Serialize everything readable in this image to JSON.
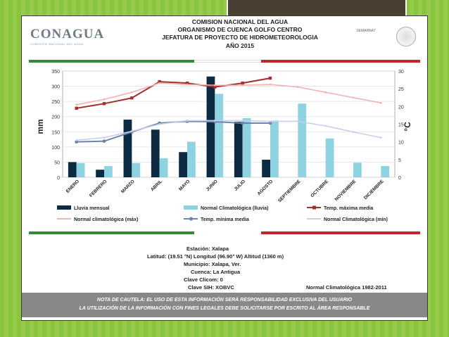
{
  "header": {
    "logo": "CONAGUA",
    "logo_sub": "COMISIÓN NACIONAL DEL AGUA",
    "line1": "COMISION NACIONAL DEL AGUA",
    "line2": "ORGANISMO DE CUENCA GOLFO CENTRO",
    "line3": "JEFATURA DE PROYECTO DE HIDROMETEOROLOGIA",
    "year": "AÑO 2015",
    "seal_text": "SEMARNAT"
  },
  "colors": {
    "lluvia": "#0d2a43",
    "normal_lluvia": "#8fd3e3",
    "tmax": "#a0312b",
    "normal_max": "#f2b3b3",
    "tmin": "#6b86a8",
    "normal_min": "#c8cfee",
    "green": "#2e8b3a",
    "red": "#c0272d"
  },
  "chart_data": {
    "type": "bar",
    "categories": [
      "ENERO",
      "FEBRERO",
      "MARZO",
      "ABRIL",
      "MAYO",
      "JUNIO",
      "JULIO",
      "AGOSTO",
      "SEPTIEMBRE",
      "OCTUBRE",
      "NOVIEMBRE",
      "DICIEMBRE"
    ],
    "ylabel": "mm",
    "y2label": "°C",
    "ylim": [
      0,
      350
    ],
    "y2lim": [
      0,
      30
    ],
    "yticks": [
      "0",
      "50",
      "100",
      "150",
      "200",
      "250",
      "300",
      "350"
    ],
    "y2ticks": [
      "0",
      "5",
      "10",
      "15",
      "20",
      "25",
      "30"
    ],
    "legend_position": "bottom",
    "series": [
      {
        "name": "Lluvia mensual",
        "kind": "bar",
        "axis": "left",
        "values": [
          50,
          25,
          190,
          157,
          83,
          332,
          183,
          58,
          null,
          null,
          null,
          null
        ]
      },
      {
        "name": "Normal Climatológica (lluvia)",
        "kind": "bar",
        "axis": "left",
        "values": [
          47,
          37,
          47,
          63,
          117,
          275,
          195,
          187,
          243,
          128,
          48,
          37
        ]
      },
      {
        "name": "Temp. máxima media",
        "kind": "line",
        "axis": "right",
        "values": [
          19.5,
          20.8,
          22.4,
          27.0,
          26.6,
          25.5,
          26.6,
          28.0,
          null,
          null,
          null,
          null
        ]
      },
      {
        "name": "Normal climatológica (máx)",
        "kind": "line",
        "axis": "right",
        "values": [
          20.5,
          22.0,
          24.0,
          26.6,
          26.2,
          26.0,
          26.0,
          26.2,
          25.5,
          24.0,
          22.5,
          21.0
        ]
      },
      {
        "name": "Temp. mínima media",
        "kind": "line",
        "axis": "right",
        "values": [
          10.0,
          10.2,
          12.8,
          15.3,
          15.8,
          15.7,
          15.3,
          15.3,
          null,
          null,
          null,
          null
        ]
      },
      {
        "name": "Normal Climatológica (mín)",
        "kind": "line",
        "axis": "right",
        "values": [
          10.5,
          11.2,
          13.0,
          15.0,
          16.0,
          16.0,
          16.0,
          15.8,
          15.8,
          14.5,
          12.8,
          11.2
        ]
      }
    ]
  },
  "station": {
    "estacion": "Estación:  Xalapa",
    "latitud": "Latitud: (19.51 °N) Longitud (96.90° W) Altitud (1360 m)",
    "municipio": "Municipio:  Xalapa, Ver.",
    "cuenca": "Cuenca:  La Antigua",
    "clicom": "Clave Clicom:  0",
    "sih": "Clave SIH:  XOBVC",
    "normal": "Normal Climatológica 1982-2011"
  },
  "caution": {
    "line1": "NOTA DE CAUTELA: EL USO DE ESTA INFORMACIÓN SERÁ RESPONSABILIDAD EXCLUSIVA DEL USUARIO",
    "line2": "LA UTILIZACIÓN DE LA INFORMACIÓN CON FINES LEGALES DEBE SOLICITARSE POR ESCRITO AL ÁREA RESPONSABLE"
  }
}
